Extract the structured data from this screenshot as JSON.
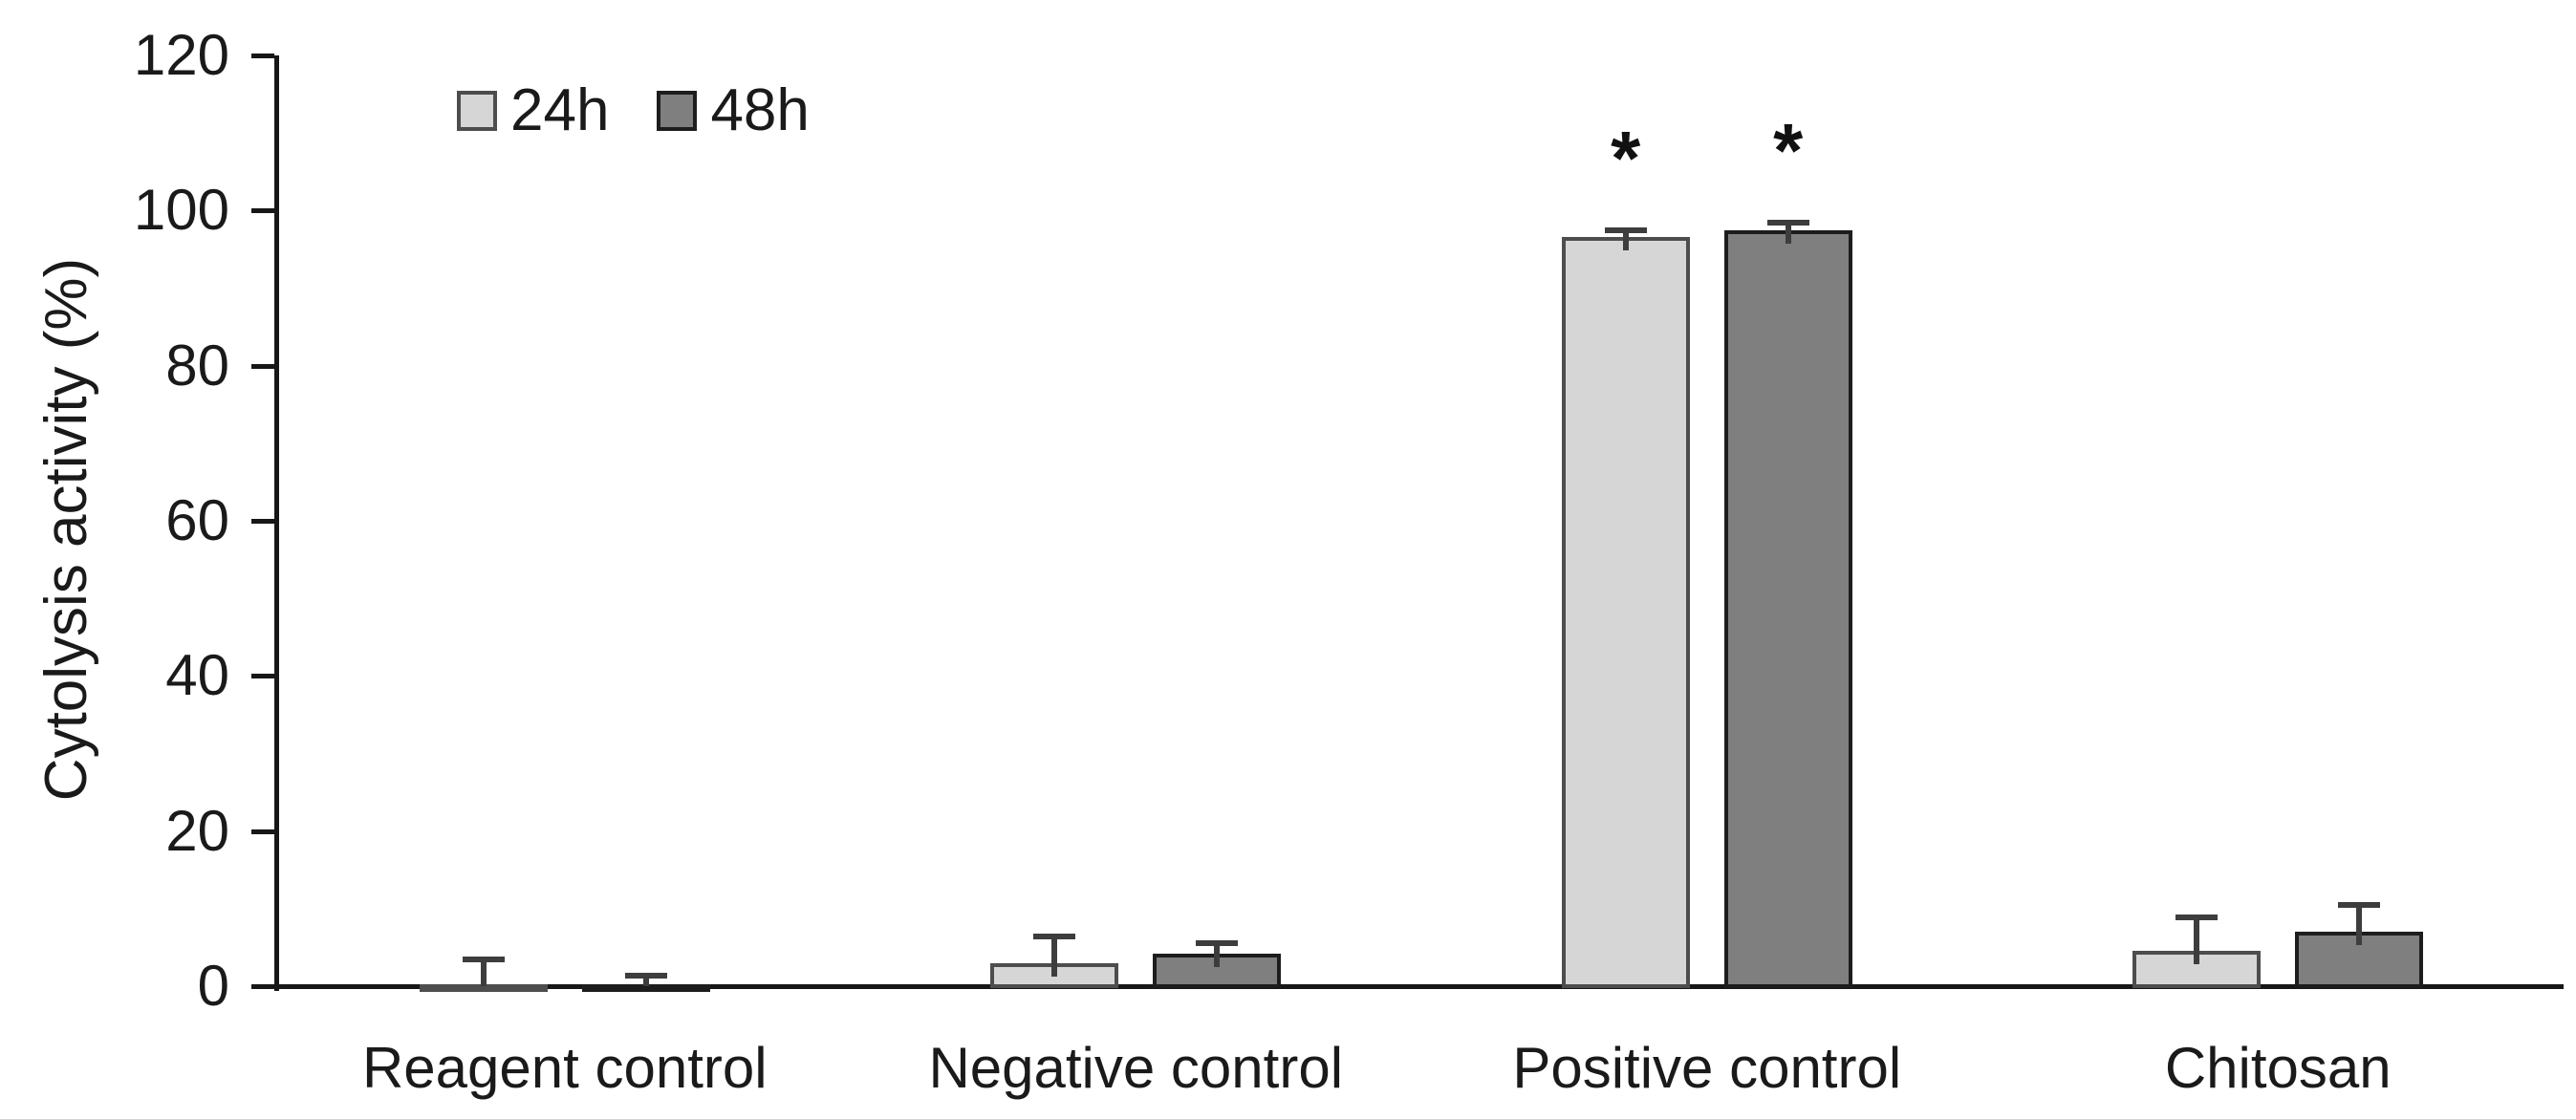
{
  "chart_data": {
    "type": "bar",
    "title": "",
    "ylabel": "Cytolysis activity (%)",
    "xlabel": "",
    "ylim": [
      0,
      120
    ],
    "yticks": [
      0,
      20,
      40,
      60,
      80,
      100,
      120
    ],
    "grid": false,
    "legend_position": "top-left-inside",
    "categories": [
      "Reagent control",
      "Negative control",
      "Positive control",
      "Chitosan"
    ],
    "series": [
      {
        "name": "24h",
        "fill": "#d6d6d6",
        "border": "#4d4d4d",
        "values": [
          0.2,
          3.0,
          96.6,
          4.6
        ],
        "errors_plus": [
          3.2,
          3.4,
          0.9,
          4.3
        ],
        "annotations": [
          "",
          "",
          "*",
          ""
        ]
      },
      {
        "name": "48h",
        "fill": "#7f7f7f",
        "border": "#1d1d1d",
        "values": [
          0.2,
          4.2,
          97.5,
          7.0
        ],
        "errors_plus": [
          1.2,
          1.4,
          0.9,
          3.5
        ],
        "annotations": [
          "",
          "",
          "*",
          ""
        ]
      }
    ],
    "significance_symbol": "*",
    "error_bar_color": "#3d3d3d",
    "axis_color": "#171717",
    "text_color": "#1a1a1a",
    "background_color": "#ffffff"
  }
}
